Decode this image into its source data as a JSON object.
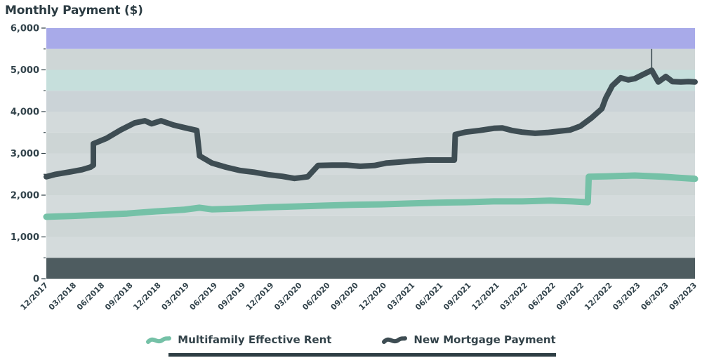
{
  "legend": {
    "items": [
      {
        "label": "Multifamily Effective Rent",
        "color": "#75c1a7"
      },
      {
        "label": "New Mortgage Payment",
        "color": "#3e4d53"
      }
    ]
  },
  "chart_data": {
    "type": "line",
    "title": "Monthly Payment ($)",
    "xlabel": "",
    "ylabel": "Monthly Payment ($)",
    "ylim": [
      0,
      6000
    ],
    "ytick_step": 1000,
    "ytick_labels": [
      "0",
      "1,000",
      "2,000",
      "3,000",
      "4,000",
      "5,000",
      "6,000"
    ],
    "x_unit": "months (quarterly tick labels)",
    "x_max": 69,
    "xtick_month_step": 3,
    "xtick_labels": [
      "12/2017",
      "03/2018",
      "06/2018",
      "09/2018",
      "12/2018",
      "03/2019",
      "06/2019",
      "09/2019",
      "12/2019",
      "03/2020",
      "06/2020",
      "09/2020",
      "12/2020",
      "03/2021",
      "06/2021",
      "09/2021",
      "12/2021",
      "03/2022",
      "06/2022",
      "09/2022",
      "12/2022",
      "03/2023",
      "06/2023",
      "09/2023"
    ],
    "grid": "off",
    "legend_position": "bottom-center",
    "plot_bands": [
      {
        "from": 5500,
        "to": 6000,
        "color": "#a8aae9"
      },
      {
        "from": 5000,
        "to": 5500,
        "color": "#ced6d6"
      },
      {
        "from": 4500,
        "to": 5000,
        "color": "#c6dfdc"
      },
      {
        "from": 4000,
        "to": 4500,
        "color": "#cbd3d7"
      },
      {
        "from": 3500,
        "to": 4000,
        "color": "#d3dadb"
      },
      {
        "from": 3000,
        "to": 3500,
        "color": "#cdd5d5"
      },
      {
        "from": 2500,
        "to": 3000,
        "color": "#d3dadb"
      },
      {
        "from": 2000,
        "to": 2500,
        "color": "#cdd5d5"
      },
      {
        "from": 1500,
        "to": 2000,
        "color": "#d4dbdc"
      },
      {
        "from": 1000,
        "to": 1500,
        "color": "#ced6d6"
      },
      {
        "from": 500,
        "to": 1000,
        "color": "#d4dbdc"
      },
      {
        "from": 0,
        "to": 500,
        "color": "#4e5c60"
      }
    ],
    "series": [
      {
        "name": "Multifamily Effective Rent",
        "color": "#75c1a7",
        "width": 9,
        "points": [
          [
            0,
            1480
          ],
          [
            2.6,
            1500
          ],
          [
            5.6,
            1530
          ],
          [
            8.6,
            1560
          ],
          [
            11.6,
            1610
          ],
          [
            14.6,
            1650
          ],
          [
            16.3,
            1700
          ],
          [
            17.6,
            1660
          ],
          [
            20.6,
            1680
          ],
          [
            23.6,
            1710
          ],
          [
            26.6,
            1730
          ],
          [
            29.6,
            1750
          ],
          [
            32.6,
            1770
          ],
          [
            35.6,
            1780
          ],
          [
            38.6,
            1800
          ],
          [
            41.6,
            1820
          ],
          [
            44.6,
            1830
          ],
          [
            47.6,
            1850
          ],
          [
            50.6,
            1850
          ],
          [
            53.6,
            1870
          ],
          [
            55.9,
            1850
          ],
          [
            57.6,
            1830
          ],
          [
            57.7,
            2440
          ],
          [
            59.6,
            2450
          ],
          [
            62.6,
            2470
          ],
          [
            65.6,
            2440
          ],
          [
            69,
            2390
          ]
        ]
      },
      {
        "name": "New Mortgage Payment",
        "color": "#3e4d53",
        "width": 8,
        "points": [
          [
            0,
            2440
          ],
          [
            1,
            2500
          ],
          [
            2.6,
            2560
          ],
          [
            3.8,
            2610
          ],
          [
            4.7,
            2670
          ],
          [
            5,
            2720
          ],
          [
            5,
            3230
          ],
          [
            6.4,
            3360
          ],
          [
            7.9,
            3560
          ],
          [
            9.4,
            3730
          ],
          [
            10.5,
            3780
          ],
          [
            11.2,
            3710
          ],
          [
            12.2,
            3780
          ],
          [
            13.5,
            3680
          ],
          [
            14.8,
            3610
          ],
          [
            16,
            3550
          ],
          [
            16.3,
            2940
          ],
          [
            17.6,
            2770
          ],
          [
            19.1,
            2670
          ],
          [
            20.6,
            2590
          ],
          [
            22.1,
            2550
          ],
          [
            23.6,
            2490
          ],
          [
            25.1,
            2450
          ],
          [
            26.4,
            2400
          ],
          [
            27.8,
            2440
          ],
          [
            28.9,
            2710
          ],
          [
            30.4,
            2720
          ],
          [
            31.9,
            2720
          ],
          [
            33.4,
            2690
          ],
          [
            34.9,
            2710
          ],
          [
            36.2,
            2770
          ],
          [
            37.5,
            2790
          ],
          [
            39,
            2820
          ],
          [
            40.5,
            2840
          ],
          [
            41.8,
            2840
          ],
          [
            43.4,
            2840
          ],
          [
            43.5,
            3450
          ],
          [
            44.6,
            3510
          ],
          [
            46.1,
            3550
          ],
          [
            47.6,
            3600
          ],
          [
            48.5,
            3610
          ],
          [
            49.5,
            3550
          ],
          [
            50.6,
            3510
          ],
          [
            52,
            3480
          ],
          [
            53.3,
            3500
          ],
          [
            54.5,
            3530
          ],
          [
            55.7,
            3560
          ],
          [
            56.8,
            3650
          ],
          [
            58,
            3850
          ],
          [
            59.1,
            4070
          ],
          [
            59.5,
            4320
          ],
          [
            60.2,
            4620
          ],
          [
            61.1,
            4810
          ],
          [
            61.9,
            4760
          ],
          [
            62.6,
            4790
          ],
          [
            63.5,
            4890
          ],
          [
            64.4,
            4990
          ],
          [
            65.1,
            4710
          ],
          [
            65.9,
            4840
          ],
          [
            66.6,
            4720
          ],
          [
            67.5,
            4710
          ],
          [
            68.3,
            4720
          ],
          [
            69,
            4710
          ]
        ]
      }
    ],
    "annotation_vline": {
      "x": 64.4,
      "from": 4990,
      "to": 5500
    }
  }
}
